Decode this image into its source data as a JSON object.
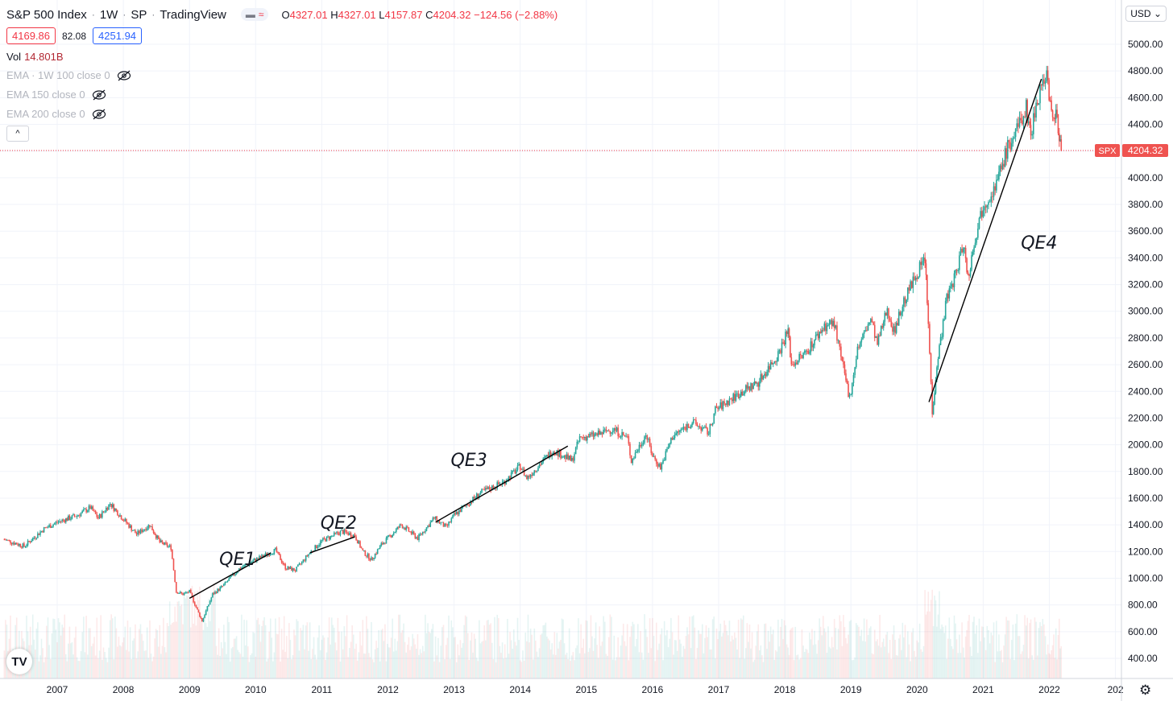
{
  "legend": {
    "symbol": "S&P 500 Index",
    "interval": "1W",
    "exchange": "SP",
    "source": "TradingView",
    "open_label": "O",
    "open": "4327.01",
    "high_label": "H",
    "high": "4327.01",
    "low_label": "L",
    "low": "4157.87",
    "close_label": "C",
    "close": "4204.32",
    "change": "−124.56 (−2.88%)",
    "bid": "4169.86",
    "spread": "82.08",
    "ask": "4251.94",
    "volume_label": "Vol",
    "volume": "14.801B",
    "indicators": [
      "EMA · 1W 100 close 0",
      "EMA 150 close 0",
      "EMA 200 close 0"
    ]
  },
  "currency": "USD",
  "price_tag": {
    "symbol": "SPX",
    "value": "4204.32"
  },
  "colors": {
    "up": "#26a69a",
    "down": "#ef5350",
    "grid": "#f0f3fa",
    "accent_red": "#f23645",
    "accent_blue": "#2962ff"
  },
  "icons": {
    "visibility": "eye-crossed-icon",
    "collapse": "chevron-up-icon",
    "logo": "tradingview-logo-icon",
    "settings": "gear-icon"
  },
  "chart_data": {
    "type": "candlestick",
    "x_ticks": [
      "2007",
      "2008",
      "2009",
      "2010",
      "2011",
      "2012",
      "2013",
      "2014",
      "2015",
      "2016",
      "2017",
      "2018",
      "2019",
      "2020",
      "2021",
      "2022",
      "202"
    ],
    "y_ticks": [
      "5000.00",
      "4800.00",
      "4600.00",
      "4400.00",
      "4200.00",
      "4000.00",
      "3800.00",
      "3600.00",
      "3400.00",
      "3200.00",
      "3000.00",
      "2800.00",
      "2600.00",
      "2400.00",
      "2200.00",
      "2000.00",
      "1800.00",
      "1600.00",
      "1400.00",
      "1200.00",
      "1000.00",
      "800.00",
      "600.00",
      "400.00"
    ],
    "ylim": [
      300,
      5150
    ],
    "xlim": [
      2006.2,
      2023.05
    ],
    "grid": true,
    "last_price": 4204.32,
    "series": [
      {
        "values": [
          [
            2006.2,
            1290
          ],
          [
            2006.5,
            1240
          ],
          [
            2006.8,
            1370
          ],
          [
            2007.0,
            1420
          ],
          [
            2007.3,
            1470
          ],
          [
            2007.5,
            1530
          ],
          [
            2007.62,
            1450
          ],
          [
            2007.8,
            1560
          ],
          [
            2007.95,
            1470
          ],
          [
            2008.2,
            1330
          ],
          [
            2008.4,
            1400
          ],
          [
            2008.55,
            1270
          ],
          [
            2008.72,
            1230
          ],
          [
            2008.8,
            900
          ],
          [
            2008.9,
            880
          ],
          [
            2009.0,
            900
          ],
          [
            2009.12,
            760
          ],
          [
            2009.19,
            680
          ],
          [
            2009.35,
            880
          ],
          [
            2009.5,
            940
          ],
          [
            2009.75,
            1070
          ],
          [
            2010.0,
            1140
          ],
          [
            2010.3,
            1210
          ],
          [
            2010.45,
            1080
          ],
          [
            2010.6,
            1060
          ],
          [
            2010.8,
            1180
          ],
          [
            2011.0,
            1280
          ],
          [
            2011.3,
            1350
          ],
          [
            2011.5,
            1320
          ],
          [
            2011.62,
            1200
          ],
          [
            2011.75,
            1140
          ],
          [
            2011.9,
            1250
          ],
          [
            2012.2,
            1400
          ],
          [
            2012.45,
            1300
          ],
          [
            2012.7,
            1450
          ],
          [
            2012.88,
            1380
          ],
          [
            2013.0,
            1470
          ],
          [
            2013.4,
            1640
          ],
          [
            2013.75,
            1720
          ],
          [
            2014.0,
            1840
          ],
          [
            2014.1,
            1750
          ],
          [
            2014.5,
            1960
          ],
          [
            2014.78,
            1880
          ],
          [
            2014.9,
            2050
          ],
          [
            2015.2,
            2080
          ],
          [
            2015.4,
            2120
          ],
          [
            2015.62,
            2050
          ],
          [
            2015.68,
            1880
          ],
          [
            2015.9,
            2080
          ],
          [
            2016.0,
            1920
          ],
          [
            2016.12,
            1830
          ],
          [
            2016.3,
            2060
          ],
          [
            2016.6,
            2170
          ],
          [
            2016.85,
            2090
          ],
          [
            2016.95,
            2260
          ],
          [
            2017.3,
            2380
          ],
          [
            2017.6,
            2470
          ],
          [
            2017.9,
            2680
          ],
          [
            2018.05,
            2860
          ],
          [
            2018.1,
            2600
          ],
          [
            2018.3,
            2680
          ],
          [
            2018.6,
            2890
          ],
          [
            2018.75,
            2910
          ],
          [
            2018.85,
            2650
          ],
          [
            2018.98,
            2350
          ],
          [
            2019.1,
            2720
          ],
          [
            2019.3,
            2940
          ],
          [
            2019.4,
            2750
          ],
          [
            2019.55,
            3020
          ],
          [
            2019.65,
            2850
          ],
          [
            2019.8,
            3070
          ],
          [
            2020.0,
            3290
          ],
          [
            2020.12,
            3390
          ],
          [
            2020.17,
            2900
          ],
          [
            2020.23,
            2240
          ],
          [
            2020.3,
            2600
          ],
          [
            2020.45,
            3100
          ],
          [
            2020.6,
            3300
          ],
          [
            2020.7,
            3520
          ],
          [
            2020.77,
            3250
          ],
          [
            2020.88,
            3560
          ],
          [
            2021.0,
            3800
          ],
          [
            2021.2,
            3950
          ],
          [
            2021.35,
            4200
          ],
          [
            2021.55,
            4400
          ],
          [
            2021.65,
            4520
          ],
          [
            2021.72,
            4330
          ],
          [
            2021.8,
            4550
          ],
          [
            2021.88,
            4700
          ],
          [
            2021.96,
            4790
          ],
          [
            2022.05,
            4400
          ],
          [
            2022.1,
            4550
          ],
          [
            2022.15,
            4250
          ],
          [
            2022.18,
            4204
          ]
        ]
      }
    ],
    "annotations": [
      {
        "label": "QE1",
        "x": 2009.45,
        "y": 1100,
        "line": [
          [
            2009.0,
            850
          ],
          [
            2010.23,
            1190
          ]
        ]
      },
      {
        "label": "QE2",
        "x": 2010.98,
        "y": 1370,
        "line": [
          [
            2010.82,
            1190
          ],
          [
            2011.5,
            1310
          ]
        ]
      },
      {
        "label": "QE3",
        "x": 2012.95,
        "y": 1840,
        "line": [
          [
            2012.72,
            1420
          ],
          [
            2014.72,
            1990
          ]
        ]
      },
      {
        "label": "QE4",
        "x": 2021.57,
        "y": 3470,
        "line": [
          [
            2020.18,
            2320
          ],
          [
            2021.88,
            4740
          ]
        ]
      }
    ]
  }
}
